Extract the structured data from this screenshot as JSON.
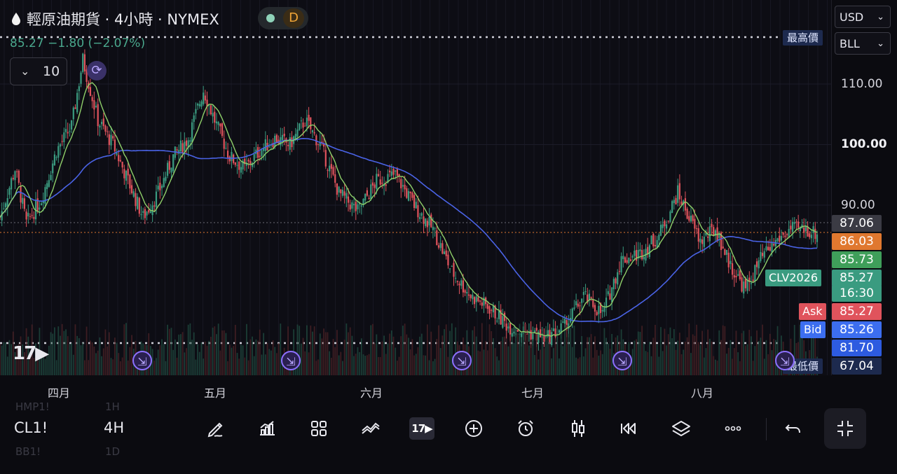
{
  "header": {
    "title": "輕原油期貨 · 4小時 · NYMEX",
    "status_letter": "D",
    "change": "85.27  −1.80 (−2.07%)",
    "interval_value": "10"
  },
  "price_scale": {
    "currency": "USD",
    "unit": "BLL",
    "ticks": [
      {
        "label": "110.00",
        "value": 110,
        "bold": false
      },
      {
        "label": "100.00",
        "value": 100,
        "bold": true
      },
      {
        "label": "90.00",
        "value": 90,
        "bold": false
      }
    ]
  },
  "price_tags": [
    {
      "label": "87.06",
      "color": "#3b3b44"
    },
    {
      "label": "86.03",
      "color": "#e0782f"
    },
    {
      "label": "85.73",
      "color": "#3f9f5a"
    },
    {
      "label": "85.27",
      "color": "#3a9b80"
    },
    {
      "label": "16:30",
      "color": "#3a9b80"
    },
    {
      "label": "85.27",
      "color": "#e0535c"
    },
    {
      "label": "85.26",
      "color": "#3c6ef0"
    },
    {
      "label": "81.70",
      "color": "#2d5be0"
    },
    {
      "label": "67.04",
      "color": "#1d2a4e"
    }
  ],
  "side_labels": {
    "contract": "CLV2026",
    "ask": "Ask",
    "bid": "Bid",
    "highest": "最高價",
    "lowest": "最低價"
  },
  "x_axis": {
    "months": [
      "四月",
      "五月",
      "六月",
      "七月",
      "八月"
    ]
  },
  "toolbar": {
    "symbol": "CL1!",
    "timeframe": "4H",
    "ghost_symbol_top": "HMP1!",
    "ghost_tf_top": "1H",
    "ghost_symbol_bottom": "BB1!",
    "ghost_tf_bottom": "1D"
  },
  "icons": {
    "drop": "oil-drop-icon",
    "refresh": "refresh-icon",
    "event_marker": "event-marker-icon",
    "draw": "pencil-icon",
    "indicators": "indicators-icon",
    "layout": "grid-icon",
    "compare": "compare-icon",
    "logo": "tradingview-logo-icon",
    "add": "plus-circle-icon",
    "alert": "alarm-icon",
    "candles": "candlestick-icon",
    "replay": "rewind-icon",
    "layers": "layers-icon",
    "more": "more-icon",
    "undo": "undo-icon",
    "fullscreen": "collapse-icon"
  },
  "colors": {
    "up": "#3a9b80",
    "down": "#e0535c",
    "ma_slow": "#4a63e6",
    "ma_fast": "#8fcf6a",
    "accent": "#8d70ff"
  },
  "chart_data": {
    "type": "candlestick",
    "title": "輕原油期貨 · 4小時 · NYMEX",
    "x_labels": [
      "四月",
      "五月",
      "六月",
      "七月",
      "八月"
    ],
    "ylim": [
      66,
      118
    ],
    "y_ticks": [
      90,
      100,
      110
    ],
    "close_path": [
      [
        0,
        88
      ],
      [
        8,
        96
      ],
      [
        14,
        87
      ],
      [
        22,
        91
      ],
      [
        30,
        99
      ],
      [
        38,
        103
      ],
      [
        44,
        114
      ],
      [
        52,
        104
      ],
      [
        60,
        100
      ],
      [
        68,
        94
      ],
      [
        76,
        88
      ],
      [
        84,
        92
      ],
      [
        92,
        98
      ],
      [
        100,
        101
      ],
      [
        108,
        109
      ],
      [
        114,
        104
      ],
      [
        122,
        98
      ],
      [
        130,
        96
      ],
      [
        138,
        99
      ],
      [
        146,
        101
      ],
      [
        154,
        100
      ],
      [
        162,
        104
      ],
      [
        170,
        100
      ],
      [
        180,
        92
      ],
      [
        190,
        89
      ],
      [
        200,
        94
      ],
      [
        210,
        95
      ],
      [
        220,
        90
      ],
      [
        230,
        86
      ],
      [
        240,
        79
      ],
      [
        250,
        75
      ],
      [
        260,
        73
      ],
      [
        270,
        70
      ],
      [
        280,
        69
      ],
      [
        290,
        68
      ],
      [
        300,
        70
      ],
      [
        310,
        75
      ],
      [
        320,
        72
      ],
      [
        330,
        81
      ],
      [
        340,
        82
      ],
      [
        350,
        85
      ],
      [
        360,
        92
      ],
      [
        366,
        88
      ],
      [
        372,
        84
      ],
      [
        380,
        86
      ],
      [
        388,
        80
      ],
      [
        396,
        76
      ],
      [
        404,
        81
      ],
      [
        412,
        84
      ],
      [
        420,
        86
      ],
      [
        428,
        86
      ],
      [
        434,
        85.27
      ]
    ],
    "series": [
      {
        "name": "",
        "values": [
          92,
          96,
          97,
          97,
          98,
          99,
          100,
          101,
          101,
          100,
          98,
          95,
          92,
          88,
          84,
          80,
          76,
          72,
          71,
          72,
          74,
          76,
          78,
          82,
          84,
          85,
          85.73
        ]
      }
    ],
    "last_price": 85.27
  }
}
